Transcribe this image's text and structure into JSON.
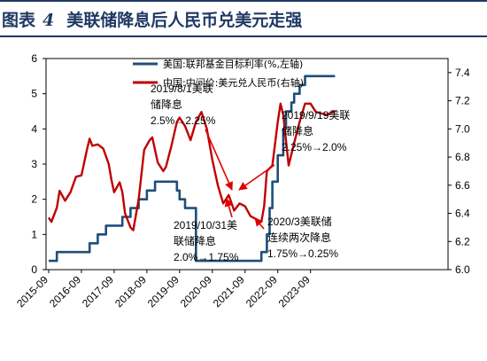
{
  "header": {
    "label": "图表",
    "number": "4",
    "title": "美联储降息后人民币兑美元走强"
  },
  "chart_data": {
    "type": "line",
    "title": "美联储降息后人民币兑美元走强",
    "left_axis": {
      "min": 0,
      "max": 6,
      "ticks": [
        "0",
        "1",
        "2",
        "3",
        "4",
        "5",
        "6"
      ]
    },
    "right_axis": {
      "min": 6.0,
      "max": 7.5,
      "ticks": [
        "6.0",
        "6.2",
        "6.4",
        "6.6",
        "6.8",
        "7.0",
        "7.2",
        "7.4"
      ]
    },
    "x_axis": {
      "ticks": [
        "2015-09",
        "2016-09",
        "2017-09",
        "2018-09",
        "2019-09",
        "2020-09",
        "2021-09",
        "2022-09",
        "2023-09"
      ]
    },
    "legend_placement": "top",
    "series": [
      {
        "name": "美国:联邦基金目标利率(%,左轴)",
        "axis": "left",
        "color": "#1f4e79",
        "step": true,
        "points": [
          [
            "2015-09",
            0.25
          ],
          [
            "2015-12",
            0.5
          ],
          [
            "2016-12",
            0.75
          ],
          [
            "2017-03",
            1.0
          ],
          [
            "2017-06",
            1.25
          ],
          [
            "2017-12",
            1.5
          ],
          [
            "2018-03",
            1.75
          ],
          [
            "2018-06",
            2.0
          ],
          [
            "2018-09",
            2.25
          ],
          [
            "2018-12",
            2.5
          ],
          [
            "2019-08",
            2.25
          ],
          [
            "2019-09",
            2.0
          ],
          [
            "2019-11",
            1.75
          ],
          [
            "2020-03",
            0.25
          ],
          [
            "2022-03",
            0.5
          ],
          [
            "2022-05",
            1.0
          ],
          [
            "2022-06",
            1.75
          ],
          [
            "2022-07",
            2.5
          ],
          [
            "2022-09",
            3.25
          ],
          [
            "2022-11",
            4.0
          ],
          [
            "2022-12",
            4.5
          ],
          [
            "2023-02",
            4.75
          ],
          [
            "2023-03",
            5.0
          ],
          [
            "2023-05",
            5.25
          ],
          [
            "2023-07",
            5.5
          ],
          [
            "2024-06",
            5.5
          ]
        ]
      },
      {
        "name": "中国:中间价:美元兑人民币(右轴)",
        "axis": "right",
        "color": "#c00000",
        "step": false,
        "points": [
          [
            "2015-09",
            6.37
          ],
          [
            "2015-10",
            6.34
          ],
          [
            "2015-12",
            6.44
          ],
          [
            "2016-01",
            6.56
          ],
          [
            "2016-03",
            6.49
          ],
          [
            "2016-05",
            6.55
          ],
          [
            "2016-07",
            6.66
          ],
          [
            "2016-09",
            6.67
          ],
          [
            "2016-11",
            6.85
          ],
          [
            "2016-12",
            6.93
          ],
          [
            "2017-01",
            6.88
          ],
          [
            "2017-03",
            6.89
          ],
          [
            "2017-05",
            6.86
          ],
          [
            "2017-07",
            6.75
          ],
          [
            "2017-08",
            6.64
          ],
          [
            "2017-09",
            6.55
          ],
          [
            "2017-11",
            6.62
          ],
          [
            "2017-12",
            6.55
          ],
          [
            "2018-01",
            6.4
          ],
          [
            "2018-03",
            6.3
          ],
          [
            "2018-04",
            6.28
          ],
          [
            "2018-06",
            6.5
          ],
          [
            "2018-08",
            6.85
          ],
          [
            "2018-10",
            6.92
          ],
          [
            "2018-11",
            6.94
          ],
          [
            "2019-01",
            6.76
          ],
          [
            "2019-03",
            6.7
          ],
          [
            "2019-04",
            6.73
          ],
          [
            "2019-06",
            6.88
          ],
          [
            "2019-08",
            7.05
          ],
          [
            "2019-09",
            7.08
          ],
          [
            "2019-11",
            7.02
          ],
          [
            "2020-01",
            6.92
          ],
          [
            "2020-03",
            7.05
          ],
          [
            "2020-05",
            7.12
          ],
          [
            "2020-07",
            7.0
          ],
          [
            "2020-09",
            6.78
          ],
          [
            "2020-11",
            6.6
          ],
          [
            "2021-01",
            6.47
          ],
          [
            "2021-03",
            6.53
          ],
          [
            "2021-05",
            6.42
          ],
          [
            "2021-07",
            6.47
          ],
          [
            "2021-09",
            6.45
          ],
          [
            "2021-11",
            6.38
          ],
          [
            "2022-01",
            6.36
          ],
          [
            "2022-03",
            6.34
          ],
          [
            "2022-04",
            6.45
          ],
          [
            "2022-05",
            6.7
          ],
          [
            "2022-07",
            6.74
          ],
          [
            "2022-09",
            7.05
          ],
          [
            "2022-10",
            7.18
          ],
          [
            "2022-11",
            7.1
          ],
          [
            "2023-01",
            6.74
          ],
          [
            "2023-03",
            6.9
          ],
          [
            "2023-05",
            7.05
          ],
          [
            "2023-07",
            7.18
          ],
          [
            "2023-09",
            7.18
          ],
          [
            "2023-11",
            7.12
          ],
          [
            "2024-01",
            7.11
          ],
          [
            "2024-03",
            7.1
          ],
          [
            "2024-06",
            7.13
          ]
        ]
      }
    ],
    "annotations": [
      {
        "lines": [
          "2019/8/1美联",
          "储降息",
          "2.5%→2.25%"
        ]
      },
      {
        "lines": [
          "2019/9/19美联",
          "储降息",
          "2.25%→2.0%"
        ]
      },
      {
        "lines": [
          "2019/10/31美",
          "联储降息",
          "2.0%→1.75%"
        ]
      },
      {
        "lines": [
          "2020/3美联储",
          "连续两次降息",
          "1.75%→0.25%"
        ]
      }
    ]
  }
}
